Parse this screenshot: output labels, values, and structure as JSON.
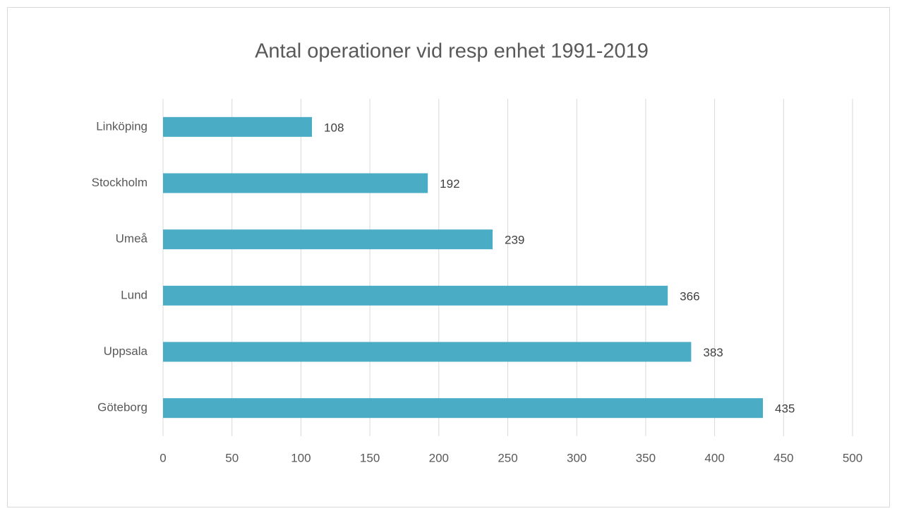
{
  "chart_data": {
    "type": "bar",
    "orientation": "horizontal",
    "title": "Antal operationer vid resp enhet 1991-2019",
    "categories": [
      "Linköping",
      "Stockholm",
      "Umeå",
      "Lund",
      "Uppsala",
      "Göteborg"
    ],
    "values": [
      108,
      192,
      239,
      366,
      383,
      435
    ],
    "color": "#4bacc6",
    "xlim": [
      0,
      500
    ],
    "xticks": [
      0,
      50,
      100,
      150,
      200,
      250,
      300,
      350,
      400,
      450,
      500
    ],
    "grid": true
  }
}
